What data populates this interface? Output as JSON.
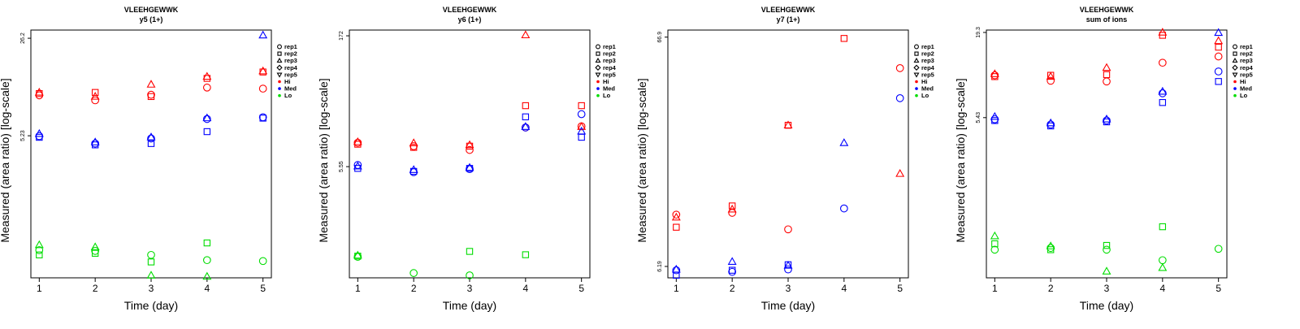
{
  "chart_data": [
    {
      "type": "scatter",
      "title": "VLEEHGEWWK",
      "subtitle": "y5 (1+)",
      "xlabel": "Time (day)",
      "ylabel": "Measured (area ratio) [log-scale]",
      "y_log": true,
      "ylim": [
        0.5,
        30
      ],
      "y_ticks": [
        5.23,
        26.2
      ],
      "x_ticks": [
        1,
        2,
        3,
        4,
        5
      ],
      "points": [
        {
          "group": "Hi",
          "rep": "rep1",
          "x": 1,
          "y": 10.2
        },
        {
          "group": "Hi",
          "rep": "rep2",
          "x": 1,
          "y": 10.5
        },
        {
          "group": "Hi",
          "rep": "rep3",
          "x": 1,
          "y": 10.7
        },
        {
          "group": "Hi",
          "rep": "rep1",
          "x": 2,
          "y": 9.4
        },
        {
          "group": "Hi",
          "rep": "rep2",
          "x": 2,
          "y": 10.7
        },
        {
          "group": "Hi",
          "rep": "rep3",
          "x": 2,
          "y": 10.0
        },
        {
          "group": "Hi",
          "rep": "rep1",
          "x": 3,
          "y": 10.3
        },
        {
          "group": "Hi",
          "rep": "rep2",
          "x": 3,
          "y": 10.0
        },
        {
          "group": "Hi",
          "rep": "rep3",
          "x": 3,
          "y": 12.2
        },
        {
          "group": "Hi",
          "rep": "rep1",
          "x": 4,
          "y": 11.6
        },
        {
          "group": "Hi",
          "rep": "rep2",
          "x": 4,
          "y": 13.5
        },
        {
          "group": "Hi",
          "rep": "rep3",
          "x": 4,
          "y": 13.9
        },
        {
          "group": "Hi",
          "rep": "rep1",
          "x": 5,
          "y": 11.4
        },
        {
          "group": "Hi",
          "rep": "rep2",
          "x": 5,
          "y": 15.0
        },
        {
          "group": "Hi",
          "rep": "rep3",
          "x": 5,
          "y": 15.2
        },
        {
          "group": "Med",
          "rep": "rep1",
          "x": 1,
          "y": 5.2
        },
        {
          "group": "Med",
          "rep": "rep2",
          "x": 1,
          "y": 5.1
        },
        {
          "group": "Med",
          "rep": "rep3",
          "x": 1,
          "y": 5.4
        },
        {
          "group": "Med",
          "rep": "rep1",
          "x": 2,
          "y": 4.6
        },
        {
          "group": "Med",
          "rep": "rep2",
          "x": 2,
          "y": 4.5
        },
        {
          "group": "Med",
          "rep": "rep3",
          "x": 2,
          "y": 4.7
        },
        {
          "group": "Med",
          "rep": "rep1",
          "x": 3,
          "y": 5.0
        },
        {
          "group": "Med",
          "rep": "rep2",
          "x": 3,
          "y": 4.6
        },
        {
          "group": "Med",
          "rep": "rep3",
          "x": 3,
          "y": 5.1
        },
        {
          "group": "Med",
          "rep": "rep1",
          "x": 4,
          "y": 6.9
        },
        {
          "group": "Med",
          "rep": "rep2",
          "x": 4,
          "y": 5.6
        },
        {
          "group": "Med",
          "rep": "rep3",
          "x": 4,
          "y": 7.0
        },
        {
          "group": "Med",
          "rep": "rep1",
          "x": 5,
          "y": 7.1
        },
        {
          "group": "Med",
          "rep": "rep2",
          "x": 5,
          "y": 7.0
        },
        {
          "group": "Med",
          "rep": "rep3",
          "x": 5,
          "y": 27.5
        },
        {
          "group": "Lo",
          "rep": "rep1",
          "x": 1,
          "y": 0.79
        },
        {
          "group": "Lo",
          "rep": "rep2",
          "x": 1,
          "y": 0.73
        },
        {
          "group": "Lo",
          "rep": "rep3",
          "x": 1,
          "y": 0.86
        },
        {
          "group": "Lo",
          "rep": "rep1",
          "x": 2,
          "y": 0.78
        },
        {
          "group": "Lo",
          "rep": "rep2",
          "x": 2,
          "y": 0.75
        },
        {
          "group": "Lo",
          "rep": "rep3",
          "x": 2,
          "y": 0.83
        },
        {
          "group": "Lo",
          "rep": "rep1",
          "x": 3,
          "y": 0.73
        },
        {
          "group": "Lo",
          "rep": "rep2",
          "x": 3,
          "y": 0.65
        },
        {
          "group": "Lo",
          "rep": "rep3",
          "x": 3,
          "y": 0.52
        },
        {
          "group": "Lo",
          "rep": "rep1",
          "x": 4,
          "y": 0.67
        },
        {
          "group": "Lo",
          "rep": "rep2",
          "x": 4,
          "y": 0.89
        },
        {
          "group": "Lo",
          "rep": "rep3",
          "x": 4,
          "y": 0.51
        },
        {
          "group": "Lo",
          "rep": "rep1",
          "x": 5,
          "y": 0.66
        }
      ]
    },
    {
      "type": "scatter",
      "title": "VLEEHGEWWK",
      "subtitle": "y6 (1+)",
      "xlabel": "Time (day)",
      "ylabel": "Measured (area ratio) [log-scale]",
      "y_log": true,
      "ylim": [
        0.3,
        200
      ],
      "y_ticks": [
        5.55,
        172
      ],
      "x_ticks": [
        1,
        2,
        3,
        4,
        5
      ],
      "points": [
        {
          "group": "Hi",
          "rep": "rep1",
          "x": 1,
          "y": 10.4
        },
        {
          "group": "Hi",
          "rep": "rep2",
          "x": 1,
          "y": 10.0
        },
        {
          "group": "Hi",
          "rep": "rep3",
          "x": 1,
          "y": 10.6
        },
        {
          "group": "Hi",
          "rep": "rep1",
          "x": 2,
          "y": 9.5
        },
        {
          "group": "Hi",
          "rep": "rep2",
          "x": 2,
          "y": 9.2
        },
        {
          "group": "Hi",
          "rep": "rep3",
          "x": 2,
          "y": 10.3
        },
        {
          "group": "Hi",
          "rep": "rep1",
          "x": 3,
          "y": 8.6
        },
        {
          "group": "Hi",
          "rep": "rep2",
          "x": 3,
          "y": 9.5
        },
        {
          "group": "Hi",
          "rep": "rep3",
          "x": 3,
          "y": 9.8
        },
        {
          "group": "Hi",
          "rep": "rep1",
          "x": 4,
          "y": 15.5
        },
        {
          "group": "Hi",
          "rep": "rep2",
          "x": 4,
          "y": 27.5
        },
        {
          "group": "Hi",
          "rep": "rep3",
          "x": 4,
          "y": 175
        },
        {
          "group": "Hi",
          "rep": "rep1",
          "x": 5,
          "y": 16.0
        },
        {
          "group": "Hi",
          "rep": "rep2",
          "x": 5,
          "y": 27.5
        },
        {
          "group": "Hi",
          "rep": "rep3",
          "x": 5,
          "y": 15.8
        },
        {
          "group": "Med",
          "rep": "rep1",
          "x": 1,
          "y": 5.8
        },
        {
          "group": "Med",
          "rep": "rep2",
          "x": 1,
          "y": 5.3
        },
        {
          "group": "Med",
          "rep": "rep3",
          "x": 1,
          "y": 5.6
        },
        {
          "group": "Med",
          "rep": "rep1",
          "x": 2,
          "y": 4.8
        },
        {
          "group": "Med",
          "rep": "rep2",
          "x": 2,
          "y": 4.9
        },
        {
          "group": "Med",
          "rep": "rep3",
          "x": 2,
          "y": 5.1
        },
        {
          "group": "Med",
          "rep": "rep1",
          "x": 3,
          "y": 5.2
        },
        {
          "group": "Med",
          "rep": "rep2",
          "x": 3,
          "y": 5.3
        },
        {
          "group": "Med",
          "rep": "rep3",
          "x": 3,
          "y": 5.4
        },
        {
          "group": "Med",
          "rep": "rep1",
          "x": 4,
          "y": 15.5
        },
        {
          "group": "Med",
          "rep": "rep2",
          "x": 4,
          "y": 20.5
        },
        {
          "group": "Med",
          "rep": "rep3",
          "x": 4,
          "y": 15.8
        },
        {
          "group": "Med",
          "rep": "rep1",
          "x": 5,
          "y": 22.0
        },
        {
          "group": "Med",
          "rep": "rep2",
          "x": 5,
          "y": 12.0
        },
        {
          "group": "Med",
          "rep": "rep3",
          "x": 5,
          "y": 14.0
        },
        {
          "group": "Lo",
          "rep": "rep1",
          "x": 1,
          "y": 0.52
        },
        {
          "group": "Lo",
          "rep": "rep2",
          "x": 1,
          "y": 0.53
        },
        {
          "group": "Lo",
          "rep": "rep3",
          "x": 1,
          "y": 0.54
        },
        {
          "group": "Lo",
          "rep": "rep1",
          "x": 2,
          "y": 0.34
        },
        {
          "group": "Lo",
          "rep": "rep1",
          "x": 3,
          "y": 0.32
        },
        {
          "group": "Lo",
          "rep": "rep2",
          "x": 3,
          "y": 0.6
        },
        {
          "group": "Lo",
          "rep": "rep2",
          "x": 4,
          "y": 0.55
        }
      ]
    },
    {
      "type": "scatter",
      "title": "VLEEHGEWWK",
      "subtitle": "y7 (1+)",
      "xlabel": "Time (day)",
      "ylabel": "Measured (area ratio) [log-scale]",
      "y_log": true,
      "ylim": [
        5.5,
        72
      ],
      "y_ticks": [
        6.19,
        66.9
      ],
      "x_ticks": [
        1,
        2,
        3,
        4,
        5
      ],
      "points": [
        {
          "group": "Hi",
          "rep": "rep1",
          "x": 1,
          "y": 10.6
        },
        {
          "group": "Hi",
          "rep": "rep2",
          "x": 1,
          "y": 9.3
        },
        {
          "group": "Hi",
          "rep": "rep3",
          "x": 1,
          "y": 10.3
        },
        {
          "group": "Hi",
          "rep": "rep1",
          "x": 2,
          "y": 10.8
        },
        {
          "group": "Hi",
          "rep": "rep2",
          "x": 2,
          "y": 11.6
        },
        {
          "group": "Hi",
          "rep": "rep3",
          "x": 2,
          "y": 11.2
        },
        {
          "group": "Hi",
          "rep": "rep1",
          "x": 3,
          "y": 9.1
        },
        {
          "group": "Hi",
          "rep": "rep2",
          "x": 3,
          "y": 26.8
        },
        {
          "group": "Hi",
          "rep": "rep3",
          "x": 3,
          "y": 26.8
        },
        {
          "group": "Hi",
          "rep": "rep2",
          "x": 4,
          "y": 66.0
        },
        {
          "group": "Hi",
          "rep": "rep1",
          "x": 5,
          "y": 48.5
        },
        {
          "group": "Hi",
          "rep": "rep3",
          "x": 5,
          "y": 16.2
        },
        {
          "group": "Med",
          "rep": "rep1",
          "x": 1,
          "y": 5.95
        },
        {
          "group": "Med",
          "rep": "rep2",
          "x": 1,
          "y": 5.65
        },
        {
          "group": "Med",
          "rep": "rep3",
          "x": 1,
          "y": 6.0
        },
        {
          "group": "Med",
          "rep": "rep1",
          "x": 2,
          "y": 5.85
        },
        {
          "group": "Med",
          "rep": "rep2",
          "x": 2,
          "y": 5.95
        },
        {
          "group": "Med",
          "rep": "rep3",
          "x": 2,
          "y": 6.5
        },
        {
          "group": "Med",
          "rep": "rep1",
          "x": 3,
          "y": 6.0
        },
        {
          "group": "Med",
          "rep": "rep2",
          "x": 3,
          "y": 6.3
        },
        {
          "group": "Med",
          "rep": "rep3",
          "x": 3,
          "y": 6.25
        },
        {
          "group": "Med",
          "rep": "rep3",
          "x": 4,
          "y": 22.3
        },
        {
          "group": "Med",
          "rep": "rep1",
          "x": 5,
          "y": 35.5
        },
        {
          "group": "Med",
          "rep": "rep1",
          "x": 4,
          "y": 11.3
        }
      ]
    },
    {
      "type": "scatter",
      "title": "VLEEHGEWWK",
      "subtitle": "sum of ions",
      "xlabel": "Time (day)",
      "ylabel": "Measured (area ratio) [log-scale]",
      "y_log": true,
      "ylim": [
        0.5,
        20
      ],
      "y_ticks": [
        5.43,
        19.3
      ],
      "x_ticks": [
        1,
        2,
        3,
        4,
        5
      ],
      "points": [
        {
          "group": "Hi",
          "rep": "rep1",
          "x": 1,
          "y": 10.2
        },
        {
          "group": "Hi",
          "rep": "rep2",
          "x": 1,
          "y": 10.0
        },
        {
          "group": "Hi",
          "rep": "rep3",
          "x": 1,
          "y": 10.4
        },
        {
          "group": "Hi",
          "rep": "rep1",
          "x": 2,
          "y": 9.4
        },
        {
          "group": "Hi",
          "rep": "rep2",
          "x": 2,
          "y": 10.2
        },
        {
          "group": "Hi",
          "rep": "rep3",
          "x": 2,
          "y": 10.0
        },
        {
          "group": "Hi",
          "rep": "rep1",
          "x": 3,
          "y": 9.3
        },
        {
          "group": "Hi",
          "rep": "rep2",
          "x": 3,
          "y": 10.3
        },
        {
          "group": "Hi",
          "rep": "rep3",
          "x": 3,
          "y": 11.4
        },
        {
          "group": "Hi",
          "rep": "rep1",
          "x": 4,
          "y": 12.3
        },
        {
          "group": "Hi",
          "rep": "rep2",
          "x": 4,
          "y": 18.5
        },
        {
          "group": "Hi",
          "rep": "rep3",
          "x": 4,
          "y": 19.3
        },
        {
          "group": "Hi",
          "rep": "rep1",
          "x": 5,
          "y": 13.5
        },
        {
          "group": "Hi",
          "rep": "rep2",
          "x": 5,
          "y": 15.5
        },
        {
          "group": "Hi",
          "rep": "rep3",
          "x": 5,
          "y": 17.0
        },
        {
          "group": "Med",
          "rep": "rep1",
          "x": 1,
          "y": 5.3
        },
        {
          "group": "Med",
          "rep": "rep2",
          "x": 1,
          "y": 5.2
        },
        {
          "group": "Med",
          "rep": "rep3",
          "x": 1,
          "y": 5.5
        },
        {
          "group": "Med",
          "rep": "rep1",
          "x": 2,
          "y": 4.9
        },
        {
          "group": "Med",
          "rep": "rep2",
          "x": 2,
          "y": 4.8
        },
        {
          "group": "Med",
          "rep": "rep3",
          "x": 2,
          "y": 5.0
        },
        {
          "group": "Med",
          "rep": "rep1",
          "x": 3,
          "y": 5.2
        },
        {
          "group": "Med",
          "rep": "rep2",
          "x": 3,
          "y": 5.1
        },
        {
          "group": "Med",
          "rep": "rep3",
          "x": 3,
          "y": 5.3
        },
        {
          "group": "Med",
          "rep": "rep1",
          "x": 4,
          "y": 7.8
        },
        {
          "group": "Med",
          "rep": "rep2",
          "x": 4,
          "y": 6.8
        },
        {
          "group": "Med",
          "rep": "rep3",
          "x": 4,
          "y": 8.0
        },
        {
          "group": "Med",
          "rep": "rep1",
          "x": 5,
          "y": 10.8
        },
        {
          "group": "Med",
          "rep": "rep2",
          "x": 5,
          "y": 9.3
        },
        {
          "group": "Med",
          "rep": "rep3",
          "x": 5,
          "y": 19.2
        },
        {
          "group": "Lo",
          "rep": "rep1",
          "x": 1,
          "y": 0.76
        },
        {
          "group": "Lo",
          "rep": "rep2",
          "x": 1,
          "y": 0.83
        },
        {
          "group": "Lo",
          "rep": "rep3",
          "x": 1,
          "y": 0.93
        },
        {
          "group": "Lo",
          "rep": "rep1",
          "x": 2,
          "y": 0.78
        },
        {
          "group": "Lo",
          "rep": "rep2",
          "x": 2,
          "y": 0.76
        },
        {
          "group": "Lo",
          "rep": "rep3",
          "x": 2,
          "y": 0.8
        },
        {
          "group": "Lo",
          "rep": "rep1",
          "x": 3,
          "y": 0.76
        },
        {
          "group": "Lo",
          "rep": "rep2",
          "x": 3,
          "y": 0.81
        },
        {
          "group": "Lo",
          "rep": "rep3",
          "x": 3,
          "y": 0.55
        },
        {
          "group": "Lo",
          "rep": "rep1",
          "x": 4,
          "y": 0.65
        },
        {
          "group": "Lo",
          "rep": "rep2",
          "x": 4,
          "y": 1.07
        },
        {
          "group": "Lo",
          "rep": "rep3",
          "x": 4,
          "y": 0.58
        },
        {
          "group": "Lo",
          "rep": "rep1",
          "x": 5,
          "y": 0.77
        }
      ]
    }
  ],
  "legend": {
    "placement": "right",
    "shapes": [
      {
        "label": "rep1",
        "symbol": "circle"
      },
      {
        "label": "rep2",
        "symbol": "square"
      },
      {
        "label": "rep3",
        "symbol": "triangle-up"
      },
      {
        "label": "rep4",
        "symbol": "diamond"
      },
      {
        "label": "rep5",
        "symbol": "triangle-down"
      }
    ],
    "colors": [
      {
        "label": "Hi",
        "color": "#ff0000"
      },
      {
        "label": "Med",
        "color": "#0000ff"
      },
      {
        "label": "Lo",
        "color": "#00dd00"
      }
    ]
  }
}
